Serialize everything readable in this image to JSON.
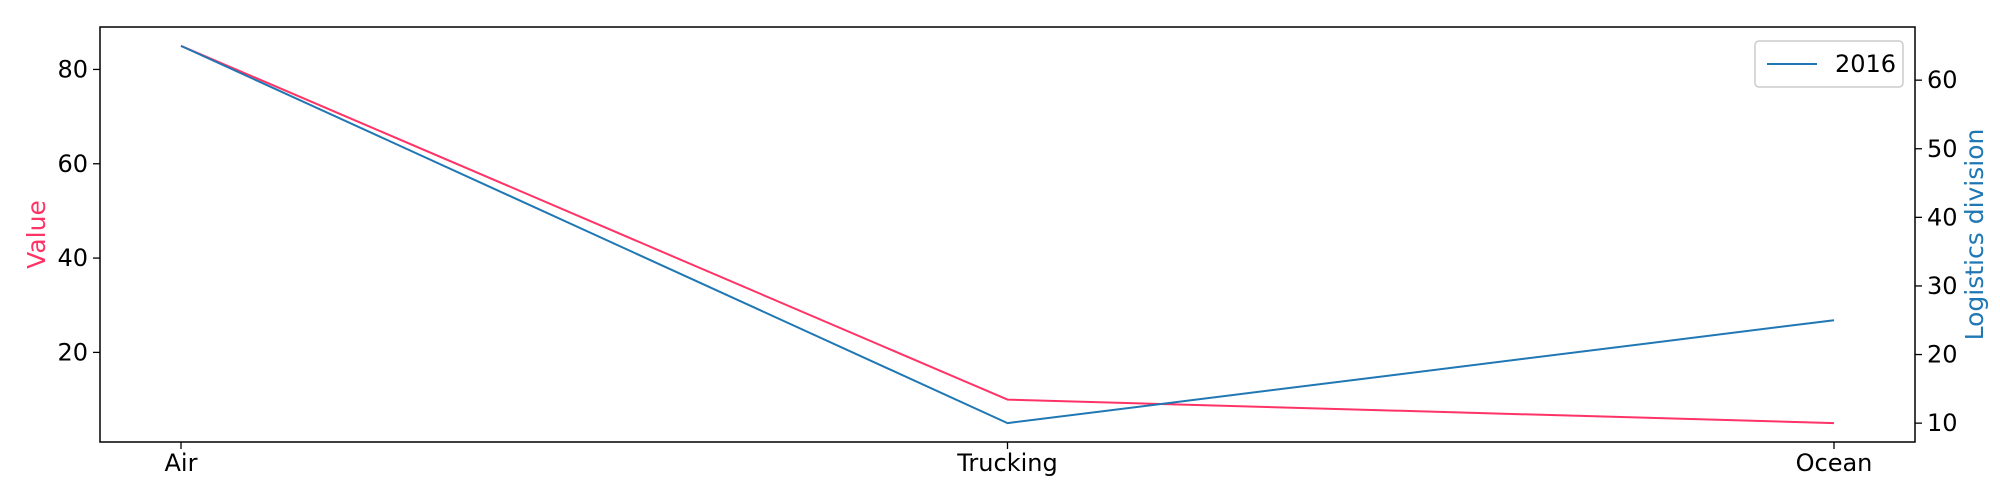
{
  "chart_data": {
    "type": "line",
    "categories": [
      "Air",
      "Trucking",
      "Ocean"
    ],
    "series": [
      {
        "values": [
          85,
          10,
          5
        ],
        "axis": "left",
        "color": "#ff3366"
      },
      {
        "name": "2016",
        "values": [
          65,
          10,
          25
        ],
        "axis": "right",
        "color": "#1f77b4"
      }
    ],
    "ylabel": "Value",
    "ylabel_color": "#ff3366",
    "y2label": "Logistics division",
    "y2label_color": "#1f77b4",
    "ylim": [
      1,
      89
    ],
    "y2lim": [
      7.25,
      67.75
    ],
    "yticks": [
      20,
      40,
      60,
      80
    ],
    "y2ticks": [
      10,
      20,
      30,
      40,
      50,
      60
    ],
    "legend": {
      "placement": "top-right",
      "entries": [
        "2016"
      ]
    },
    "grid": false
  }
}
